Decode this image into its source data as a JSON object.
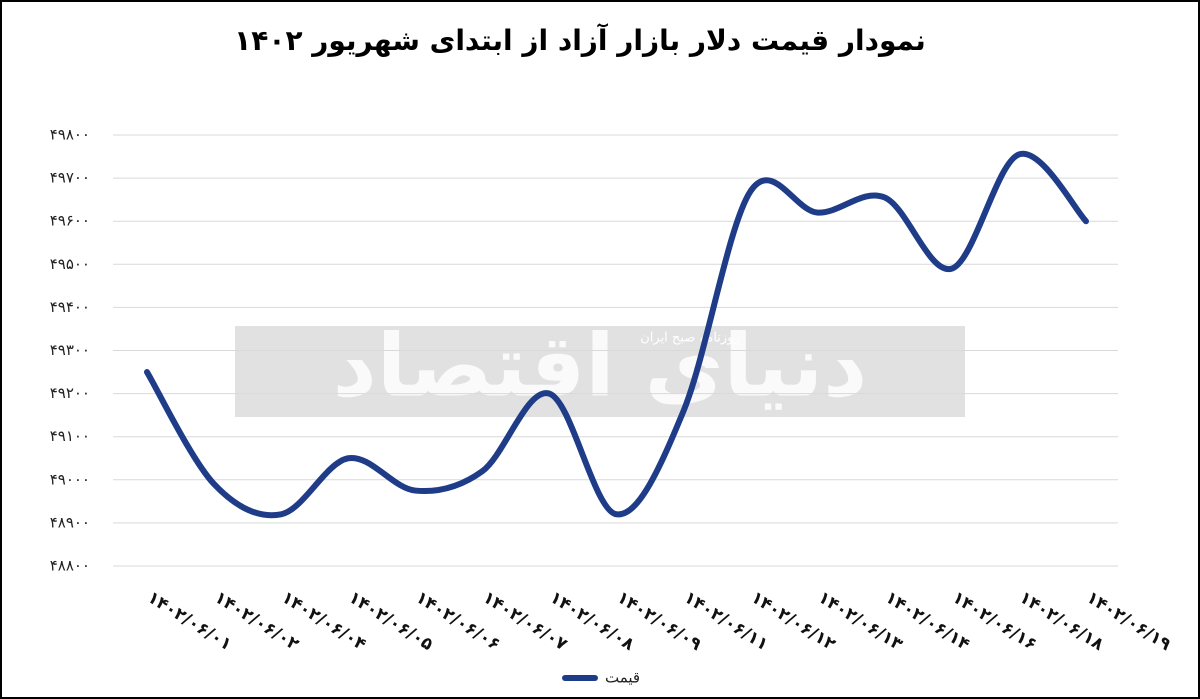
{
  "chart_data": {
    "type": "line",
    "title": "نمودار قیمت دلار بازار آزاد از ابتدای شهریور ۱۴۰۲",
    "categories": [
      "۱۴۰۲/۰۶/۰۱",
      "۱۴۰۲/۰۶/۰۲",
      "۱۴۰۲/۰۶/۰۴",
      "۱۴۰۲/۰۶/۰۵",
      "۱۴۰۲/۰۶/۰۶",
      "۱۴۰۲/۰۶/۰۷",
      "۱۴۰۲/۰۶/۰۸",
      "۱۴۰۲/۰۶/۰۹",
      "۱۴۰۲/۰۶/۱۱",
      "۱۴۰۲/۰۶/۱۲",
      "۱۴۰۲/۰۶/۱۳",
      "۱۴۰۲/۰۶/۱۴",
      "۱۴۰۲/۰۶/۱۶",
      "۱۴۰۲/۰۶/۱۸",
      "۱۴۰۲/۰۶/۱۹"
    ],
    "series": [
      {
        "name": "قیمت",
        "color": "#1f3c88",
        "values": [
          49250,
          48990,
          48920,
          49050,
          48975,
          49020,
          49200,
          48920,
          49160,
          49670,
          49620,
          49655,
          49490,
          49755,
          49600
        ]
      }
    ],
    "ylim": [
      48800,
      49800
    ],
    "yticks": [
      {
        "value": 48800,
        "label": "۴۸۸۰۰"
      },
      {
        "value": 48900,
        "label": "۴۸۹۰۰"
      },
      {
        "value": 49000,
        "label": "۴۹۰۰۰"
      },
      {
        "value": 49100,
        "label": "۴۹۱۰۰"
      },
      {
        "value": 49200,
        "label": "۴۹۲۰۰"
      },
      {
        "value": 49300,
        "label": "۴۹۳۰۰"
      },
      {
        "value": 49400,
        "label": "۴۹۴۰۰"
      },
      {
        "value": 49500,
        "label": "۴۹۵۰۰"
      },
      {
        "value": 49600,
        "label": "۴۹۶۰۰"
      },
      {
        "value": 49700,
        "label": "۴۹۷۰۰"
      },
      {
        "value": 49800,
        "label": "۴۹۸۰۰"
      }
    ],
    "grid": true,
    "smooth": true,
    "legend": "bottom",
    "watermark": {
      "title": "دنیای اقتصاد",
      "subtitle": "روزنامه صبح ایران"
    }
  }
}
